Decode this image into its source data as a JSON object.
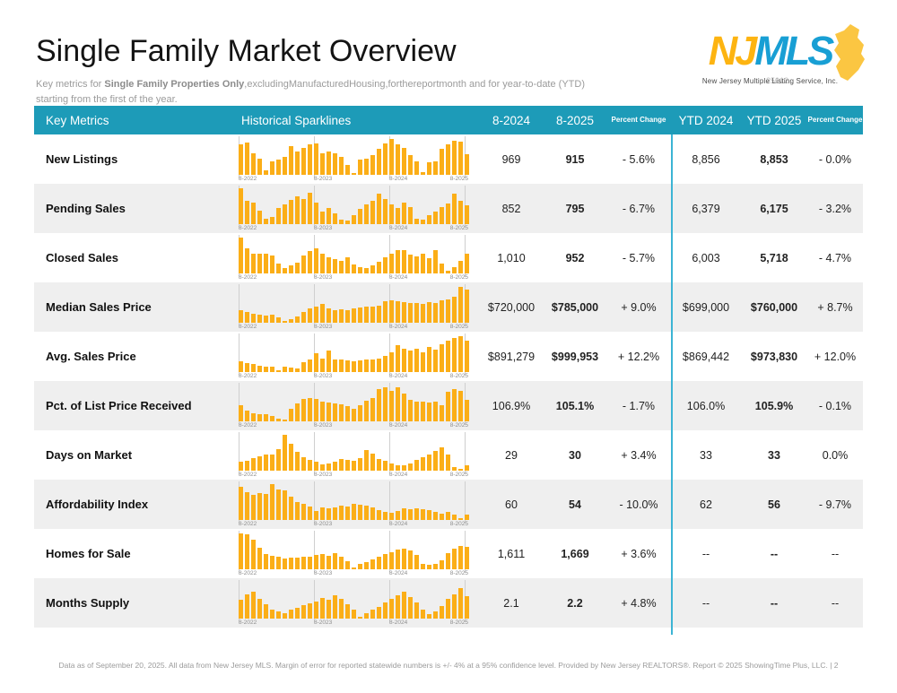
{
  "page": {
    "title": "Single Family Market Overview",
    "subtitle_prefix": "Key metrics for ",
    "subtitle_bold": "Single Family Properties Only",
    "subtitle_rest": ",excludingManufacturedHousing,forthereportmonth and for year-to-date (YTD) starting from the first of the year.",
    "footer": "Data as of September 20, 2025. All data from New Jersey MLS. Margin of error for reported statewide numbers is +/- 4% at a 95% confidence level. Provided by New Jersey REALTORS®. Report © 2025 ShowingTime Plus, LLC. | 2"
  },
  "logo": {
    "nj": "NJ",
    "mls": "MLS",
    "caption": "New Jersey Multiple Listing Service, Inc.",
    "watermark": "25012",
    "nj_color": "#FDB411",
    "mls_color": "#189FD4",
    "state_color": "#FBC642"
  },
  "colors": {
    "header_bg": "#1D9BB8",
    "section_divider": "#3CB4D4",
    "bar": "#FBAE17",
    "alt_row": "#EFEFEF",
    "gridline": "#CFCFCF"
  },
  "table": {
    "headers": {
      "key_metrics": "Key Metrics",
      "sparklines": "Historical Sparklines",
      "m2024": "8-2024",
      "m2025": "8-2025",
      "pct_change_1": "Percent Change",
      "ytd2024": "YTD 2024",
      "ytd2025": "YTD 2025",
      "pct_change_2": "Percent Change"
    },
    "axis_labels": [
      "8-2022",
      "8-2023",
      "8-2024",
      "8-2025"
    ],
    "rows": [
      {
        "label": "New Listings",
        "m2024": "969",
        "m2025": "915",
        "m_change": "- 5.6%",
        "ytd2024": "8,856",
        "ytd2025": "8,853",
        "ytd_change": "- 0.0%",
        "spark": [
          84,
          90,
          60,
          46,
          12,
          38,
          42,
          50,
          80,
          64,
          76,
          84,
          88,
          60,
          64,
          60,
          50,
          28,
          4,
          42,
          46,
          54,
          72,
          88,
          100,
          84,
          76,
          54,
          38,
          8,
          34,
          38,
          72,
          86,
          94,
          92,
          58
        ]
      },
      {
        "label": "Pending Sales",
        "m2024": "852",
        "m2025": "795",
        "m_change": "- 6.7%",
        "ytd2024": "6,379",
        "ytd2025": "6,175",
        "ytd_change": "- 3.2%",
        "spark": [
          100,
          64,
          60,
          38,
          16,
          20,
          44,
          56,
          68,
          78,
          70,
          88,
          60,
          36,
          46,
          30,
          12,
          10,
          26,
          42,
          54,
          66,
          84,
          70,
          56,
          46,
          60,
          48,
          16,
          12,
          24,
          36,
          48,
          58,
          86,
          66,
          52
        ]
      },
      {
        "label": "Closed Sales",
        "m2024": "1,010",
        "m2025": "952",
        "m_change": "- 5.7%",
        "ytd2024": "6,003",
        "ytd2025": "5,718",
        "ytd_change": "- 4.7%",
        "spark": [
          100,
          70,
          56,
          54,
          54,
          50,
          28,
          14,
          22,
          30,
          50,
          62,
          70,
          54,
          44,
          40,
          36,
          46,
          26,
          18,
          14,
          22,
          32,
          44,
          56,
          66,
          64,
          52,
          48,
          56,
          42,
          64,
          28,
          8,
          18,
          34,
          56
        ]
      },
      {
        "label": "Median Sales Price",
        "m2024": "$720,000",
        "m2025": "$785,000",
        "m_change": "+ 9.0%",
        "ytd2024": "$699,000",
        "ytd2025": "$760,000",
        "ytd_change": "+ 8.7%",
        "spark": [
          34,
          30,
          26,
          22,
          20,
          22,
          14,
          4,
          10,
          18,
          30,
          40,
          46,
          52,
          40,
          36,
          38,
          36,
          40,
          42,
          44,
          46,
          48,
          60,
          62,
          60,
          58,
          56,
          54,
          52,
          58,
          56,
          62,
          66,
          72,
          100,
          92
        ]
      },
      {
        "label": "Avg. Sales Price",
        "m2024": "$891,279",
        "m2025": "$999,953",
        "m_change": "+ 12.2%",
        "ytd2024": "$869,442",
        "ytd2025": "$973,830",
        "ytd_change": "+ 12.0%",
        "spark": [
          30,
          26,
          22,
          18,
          16,
          14,
          6,
          16,
          12,
          10,
          28,
          36,
          52,
          38,
          60,
          34,
          34,
          32,
          30,
          32,
          34,
          36,
          38,
          46,
          54,
          74,
          66,
          60,
          64,
          56,
          70,
          62,
          78,
          88,
          94,
          100,
          88
        ]
      },
      {
        "label": "Pct. of List Price Received",
        "m2024": "106.9%",
        "m2025": "105.1%",
        "m_change": "- 1.7%",
        "ytd2024": "106.0%",
        "ytd2025": "105.9%",
        "ytd_change": "- 0.1%",
        "spark": [
          44,
          30,
          22,
          20,
          20,
          14,
          8,
          6,
          34,
          50,
          62,
          66,
          62,
          56,
          52,
          50,
          48,
          42,
          34,
          46,
          58,
          66,
          90,
          94,
          86,
          94,
          78,
          60,
          56,
          54,
          52,
          56,
          46,
          82,
          90,
          86,
          60
        ]
      },
      {
        "label": "Days on Market",
        "m2024": "29",
        "m2025": "30",
        "m_change": "+ 3.4%",
        "ytd2024": "33",
        "ytd2025": "33",
        "ytd_change": "0.0%",
        "spark": [
          24,
          28,
          34,
          40,
          44,
          44,
          60,
          100,
          76,
          52,
          38,
          30,
          26,
          18,
          20,
          26,
          32,
          30,
          28,
          34,
          58,
          48,
          32,
          28,
          20,
          16,
          14,
          20,
          30,
          38,
          44,
          56,
          64,
          46,
          10,
          6,
          16
        ]
      },
      {
        "label": "Affordability Index",
        "m2024": "60",
        "m2025": "54",
        "m_change": "- 10.0%",
        "ytd2024": "62",
        "ytd2025": "56",
        "ytd_change": "- 9.7%",
        "spark": [
          92,
          78,
          70,
          76,
          72,
          100,
          86,
          82,
          66,
          50,
          44,
          38,
          24,
          34,
          32,
          34,
          40,
          38,
          44,
          42,
          40,
          36,
          28,
          22,
          20,
          24,
          32,
          30,
          32,
          30,
          28,
          22,
          18,
          22,
          16,
          6,
          14
        ]
      },
      {
        "label": "Homes for Sale",
        "m2024": "1,611",
        "m2025": "1,669",
        "m_change": "+ 3.6%",
        "ytd2024": "--",
        "ytd2025": "--",
        "ytd_change": "--",
        "spark": [
          100,
          98,
          82,
          60,
          42,
          38,
          34,
          30,
          32,
          32,
          34,
          36,
          40,
          42,
          38,
          44,
          36,
          22,
          6,
          14,
          20,
          28,
          34,
          42,
          48,
          56,
          58,
          52,
          40,
          14,
          12,
          16,
          26,
          46,
          58,
          66,
          62
        ]
      },
      {
        "label": "Months Supply",
        "m2024": "2.1",
        "m2025": "2.2",
        "m_change": "+ 4.8%",
        "ytd2024": "--",
        "ytd2025": "--",
        "ytd_change": "--",
        "spark": [
          52,
          68,
          74,
          56,
          40,
          24,
          20,
          16,
          24,
          30,
          38,
          42,
          48,
          58,
          52,
          64,
          54,
          40,
          24,
          6,
          16,
          24,
          32,
          44,
          54,
          64,
          74,
          60,
          46,
          24,
          12,
          20,
          34,
          54,
          68,
          84,
          62
        ]
      }
    ]
  }
}
